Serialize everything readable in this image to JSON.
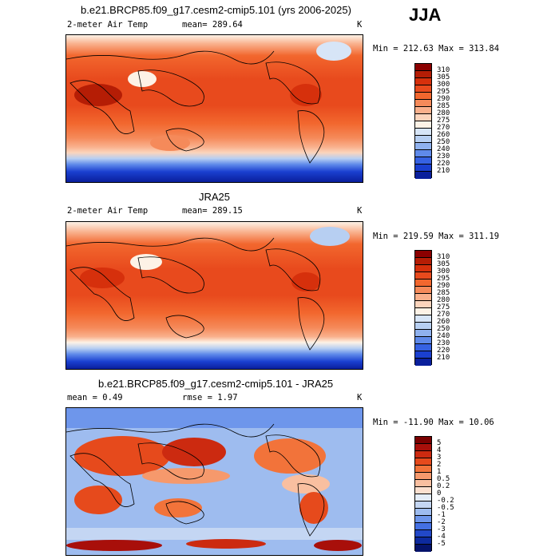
{
  "season": "JJA",
  "panels": [
    {
      "title": "b.e21.BRCP85.f09_g17.cesm2-cmip5.101 (yrs 2006-2025)",
      "left": "2-meter Air Temp",
      "mid": "mean= 289.64",
      "unit": "K",
      "minmax": "Min = 212.63 Max = 313.84",
      "labels": [
        "310",
        "305",
        "300",
        "295",
        "290",
        "285",
        "280",
        "275",
        "270",
        "260",
        "250",
        "240",
        "230",
        "220",
        "210"
      ]
    },
    {
      "title": "JRA25",
      "left": "2-meter Air Temp",
      "mid": "mean= 289.15",
      "unit": "K",
      "minmax": "Min = 219.59 Max = 311.19",
      "labels": [
        "310",
        "305",
        "300",
        "295",
        "290",
        "285",
        "280",
        "275",
        "270",
        "260",
        "250",
        "240",
        "230",
        "220",
        "210"
      ]
    },
    {
      "title": "b.e21.BRCP85.f09_g17.cesm2-cmip5.101 - JRA25",
      "left": "mean =    0.49",
      "mid": "rmse =    1.97",
      "unit": "K",
      "minmax": "Min = -11.90 Max =  10.06",
      "labels": [
        "5",
        "4",
        "3",
        "2",
        "1",
        "0.5",
        "0.2",
        "0",
        "-0.2",
        "-0.5",
        "-1",
        "-2",
        "-3",
        "-4",
        "-5"
      ]
    }
  ],
  "colors": {
    "abs_scale": [
      "#8b0000",
      "#b51d05",
      "#d6300c",
      "#e84a1d",
      "#f2672e",
      "#f58a5a",
      "#f9b08c",
      "#fbd4bc",
      "#fdf2e6",
      "#d7e5f7",
      "#b7cff2",
      "#8fb1ee",
      "#5f8aea",
      "#3662e3",
      "#1a3fd0",
      "#0a1f9c"
    ],
    "diff_scale": [
      "#7a0000",
      "#a80f0a",
      "#cc2a10",
      "#e64a1c",
      "#f2733a",
      "#f6996c",
      "#f9bfa0",
      "#fbe0d0",
      "#e4edf9",
      "#c4d6f3",
      "#9ebcef",
      "#6e96eb",
      "#4470e3",
      "#2248c8",
      "#0d2a9e",
      "#05136b"
    ]
  }
}
